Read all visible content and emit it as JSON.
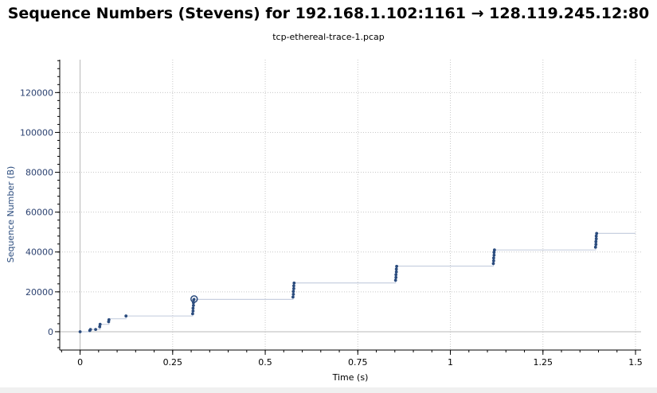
{
  "header": {
    "title": "Sequence Numbers (Stevens) for 192.168.1.102:1161 → 128.119.245.12:80",
    "subtitle": "tcp-ethereal-trace-1.pcap"
  },
  "colors": {
    "points": "#2b4c7e",
    "step_line": "#c8d0e0",
    "grid": "#c8c8c8",
    "axis": "#000000",
    "ytick_text": "#2b4170",
    "ylabel_text": "#2b4c7e"
  },
  "chart_data": {
    "type": "scatter",
    "title": "Sequence Numbers (Stevens) for 192.168.1.102:1161 → 128.119.245.12:80",
    "subtitle": "tcp-ethereal-trace-1.pcap",
    "xlabel": "Time (s)",
    "ylabel": "Sequence Number (B)",
    "xlim": [
      -0.055,
      1.515
    ],
    "ylim": [
      -9200,
      136500
    ],
    "grid": true,
    "x_ticks": [
      {
        "value": 0,
        "label": "0"
      },
      {
        "value": 0.25,
        "label": "0.25"
      },
      {
        "value": 0.5,
        "label": "0.5"
      },
      {
        "value": 0.75,
        "label": "0.75"
      },
      {
        "value": 1,
        "label": "1"
      },
      {
        "value": 1.25,
        "label": "1.25"
      },
      {
        "value": 1.5,
        "label": "1.5"
      }
    ],
    "y_ticks": [
      {
        "value": 0,
        "label": "0"
      },
      {
        "value": 20000,
        "label": "20000"
      },
      {
        "value": 40000,
        "label": "40000"
      },
      {
        "value": 60000,
        "label": "60000"
      },
      {
        "value": 80000,
        "label": "80000"
      },
      {
        "value": 100000,
        "label": "100000"
      },
      {
        "value": 120000,
        "label": "120000"
      }
    ],
    "x_minor_step": 0.05,
    "y_minor_step": 4000,
    "series": [
      {
        "points": [
          {
            "x": 0.0,
            "y": 1
          },
          {
            "x": 0.026,
            "y": 566
          },
          {
            "x": 0.028,
            "y": 1127
          },
          {
            "x": 0.042,
            "y": 1127
          },
          {
            "x": 0.053,
            "y": 2500
          },
          {
            "x": 0.054,
            "y": 3700
          },
          {
            "x": 0.077,
            "y": 5000
          },
          {
            "x": 0.078,
            "y": 6000
          },
          {
            "x": 0.124,
            "y": 7900
          },
          {
            "x": 0.304,
            "y": 9000
          },
          {
            "x": 0.305,
            "y": 10400
          },
          {
            "x": 0.305,
            "y": 11800
          },
          {
            "x": 0.306,
            "y": 13200
          },
          {
            "x": 0.306,
            "y": 14600
          },
          {
            "x": 0.307,
            "y": 16000
          },
          {
            "x": 0.575,
            "y": 17400
          },
          {
            "x": 0.576,
            "y": 18800
          },
          {
            "x": 0.576,
            "y": 20200
          },
          {
            "x": 0.577,
            "y": 21600
          },
          {
            "x": 0.577,
            "y": 23000
          },
          {
            "x": 0.578,
            "y": 24400
          },
          {
            "x": 0.852,
            "y": 25800
          },
          {
            "x": 0.853,
            "y": 27200
          },
          {
            "x": 0.853,
            "y": 28600
          },
          {
            "x": 0.854,
            "y": 30000
          },
          {
            "x": 0.854,
            "y": 31400
          },
          {
            "x": 0.855,
            "y": 32800
          },
          {
            "x": 1.116,
            "y": 34200
          },
          {
            "x": 1.117,
            "y": 35600
          },
          {
            "x": 1.117,
            "y": 37000
          },
          {
            "x": 1.118,
            "y": 38400
          },
          {
            "x": 1.118,
            "y": 39800
          },
          {
            "x": 1.119,
            "y": 41000
          },
          {
            "x": 1.392,
            "y": 42400
          },
          {
            "x": 1.393,
            "y": 43800
          },
          {
            "x": 1.393,
            "y": 45200
          },
          {
            "x": 1.394,
            "y": 46600
          },
          {
            "x": 1.394,
            "y": 48000
          },
          {
            "x": 1.395,
            "y": 49300
          }
        ]
      }
    ],
    "step_line": [
      [
        0.0,
        1
      ],
      [
        0.026,
        1
      ],
      [
        0.026,
        1127
      ],
      [
        0.054,
        1127
      ],
      [
        0.054,
        3700
      ],
      [
        0.078,
        3700
      ],
      [
        0.078,
        6500
      ],
      [
        0.124,
        6500
      ],
      [
        0.124,
        7900
      ],
      [
        0.304,
        7900
      ],
      [
        0.307,
        16200
      ],
      [
        0.575,
        16200
      ],
      [
        0.578,
        24500
      ],
      [
        0.852,
        24500
      ],
      [
        0.855,
        32900
      ],
      [
        1.116,
        32900
      ],
      [
        1.119,
        41000
      ],
      [
        1.392,
        41000
      ],
      [
        1.395,
        49300
      ],
      [
        1.5,
        49300
      ]
    ],
    "highlight": {
      "x": 0.308,
      "y": 16400
    }
  }
}
